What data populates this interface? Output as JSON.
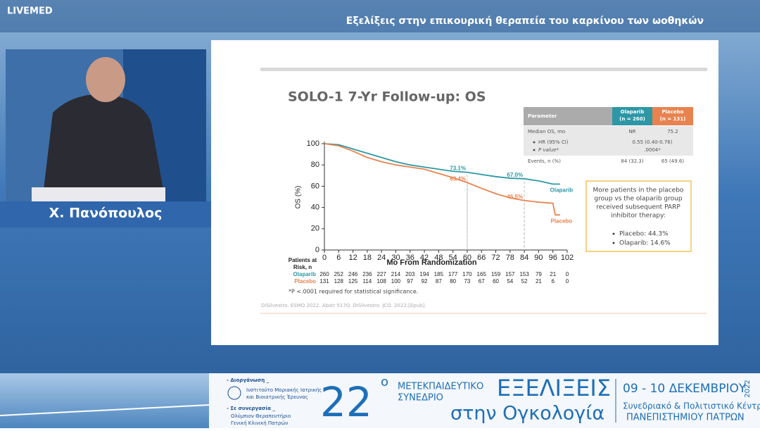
{
  "header": {
    "logo": "LIVEMED",
    "title": "Εξελίξεις στην επικουρική θεραπεία του καρκίνου των ωοθηκών"
  },
  "speaker": {
    "name": "Χ. Πανόπουλος"
  },
  "slide": {
    "title": "SOLO-1 7-Yr Follow-up: OS",
    "table": {
      "columns": [
        [
          "Parameter"
        ],
        [
          "Olaparib",
          "(n = 260)"
        ],
        [
          "Placebo",
          "(n = 131)"
        ]
      ],
      "rows": [
        [
          "Median OS, mo",
          "NR",
          "75.2"
        ],
        [
          "HR (95% CI)",
          "0.55 (0.40-0.76)"
        ],
        [
          "P value*",
          ".0004*"
        ],
        [
          "Events, n (%)",
          "84 (32.3)",
          "65 (49.6)"
        ]
      ]
    },
    "callout": {
      "text": [
        "More patients in the placebo",
        "group vs the olaparib group",
        "received subsequent PARP",
        "inhibitor therapy:"
      ],
      "items": [
        "Placebo: 44.3%",
        "Olaparib: 14.6%"
      ]
    },
    "risk_table": {
      "label": [
        "Patients at",
        "Risk, n"
      ],
      "rows": [
        [
          260,
          252,
          246,
          236,
          227,
          214,
          203,
          194,
          185,
          177,
          170,
          165,
          159,
          157,
          153,
          79,
          21,
          0
        ],
        [
          131,
          128,
          125,
          114,
          108,
          100,
          97,
          92,
          87,
          80,
          73,
          67,
          60,
          54,
          52,
          21,
          6,
          0
        ]
      ]
    },
    "footnote": "*P <.0001 required for statistical significance.",
    "reference": "DiSilvestro. ESMO 2022. Abstr 517O. DiSilvestro. JCO. 2022;[Epub]."
  },
  "chart_data": {
    "type": "line",
    "xlabel": "Mo From Randomization",
    "ylabel": "OS (%)",
    "xlim": [
      0,
      102
    ],
    "xticks": [
      0,
      6,
      12,
      18,
      24,
      30,
      36,
      42,
      48,
      54,
      60,
      66,
      72,
      78,
      84,
      90,
      96,
      102
    ],
    "ylim": [
      0,
      100
    ],
    "yticks": [
      0,
      20,
      40,
      60,
      80,
      100
    ],
    "series": [
      {
        "name": "Olaparib",
        "color": "#2e97a6",
        "x": [
          0,
          6,
          12,
          18,
          24,
          30,
          36,
          42,
          48,
          54,
          60,
          66,
          72,
          78,
          84,
          90,
          96,
          99
        ],
        "values": [
          100,
          99,
          95,
          91,
          87,
          83,
          80,
          78,
          76,
          74,
          73.1,
          71,
          69,
          67.5,
          67,
          65,
          62,
          62
        ]
      },
      {
        "name": "Placebo",
        "color": "#e8834f",
        "x": [
          0,
          6,
          12,
          18,
          24,
          30,
          36,
          42,
          48,
          54,
          60,
          66,
          72,
          78,
          84,
          90,
          96,
          97,
          99
        ],
        "values": [
          100,
          98,
          93,
          87,
          83,
          80,
          78,
          76,
          72,
          68,
          63.4,
          58,
          53,
          49,
          46.5,
          45,
          44,
          33,
          33
        ]
      }
    ],
    "annotations": [
      {
        "x": 60,
        "y": 73.1,
        "label": "73.1%",
        "series": 0
      },
      {
        "x": 84,
        "y": 67.0,
        "label": "67.0%",
        "series": 0
      },
      {
        "x": 60,
        "y": 63.4,
        "label": "63.4%",
        "series": 1
      },
      {
        "x": 84,
        "y": 46.5,
        "label": "46.5%",
        "series": 1
      }
    ]
  },
  "banner": {
    "organizer_label": "- Διοργάνωση _",
    "organizer": [
      "Ινστιτούτο Μοριακής Ιατρικής",
      "και Βιοιατρικής Έρευνας"
    ],
    "partner_label": "- Σε συνεργασία _",
    "partner": [
      "Ολύμπιον Θεραπευτήριο",
      "Γενική Κλινική Πατρών"
    ],
    "number": "22",
    "ordinal": "ο",
    "kind": [
      "ΜΕΤΕΚΠΑΙΔΕΥΤΙΚΟ",
      "ΣΥΝΕΔΡΙΟ"
    ],
    "name": "ΕΞΕΛΙΞΕΙΣ",
    "subtitle": "στην Ογκολογία",
    "dates": "09 - 10 ΔΕΚΕΜΒΡΙΟΥ",
    "year": "2022",
    "venue": [
      "Συνεδριακό & Πολιτιστικό Κέντρο",
      "ΠΑΝΕΠΙΣΤΗΜΙΟΥ ΠΑΤΡΩΝ"
    ]
  }
}
